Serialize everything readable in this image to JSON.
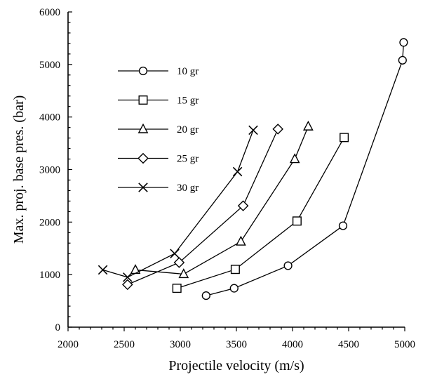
{
  "chart_data": {
    "type": "line",
    "xlabel": "Projectile velocity (m/s)",
    "ylabel": "Max. proj. base pres. (bar)",
    "xlim": [
      2000,
      5000
    ],
    "ylim": [
      0,
      6000
    ],
    "xticks": [
      2000,
      2500,
      3000,
      3500,
      4000,
      4500,
      5000
    ],
    "yticks": [
      0,
      1000,
      2000,
      3000,
      4000,
      5000,
      6000
    ],
    "grid": false,
    "legend_position": "upper-left",
    "series": [
      {
        "name": "10 gr",
        "marker": "circle",
        "x": [
          3230,
          3480,
          3960,
          4450,
          4980,
          4990
        ],
        "y": [
          600,
          740,
          1170,
          1930,
          5080,
          5420
        ]
      },
      {
        "name": "15 gr",
        "marker": "square",
        "x": [
          2970,
          3490,
          4040,
          4460
        ],
        "y": [
          740,
          1100,
          2020,
          3610
        ]
      },
      {
        "name": "20 gr",
        "marker": "triangle",
        "x": [
          2600,
          3030,
          3540,
          4020,
          4140
        ],
        "y": [
          1090,
          1010,
          1630,
          3200,
          3820
        ]
      },
      {
        "name": "25 gr",
        "marker": "diamond",
        "x": [
          2530,
          2990,
          3560,
          3870
        ],
        "y": [
          810,
          1230,
          2310,
          3770
        ]
      },
      {
        "name": "30 gr",
        "marker": "x",
        "x": [
          2310,
          2530,
          2950,
          3510,
          3650
        ],
        "y": [
          1090,
          950,
          1400,
          2960,
          3750
        ]
      }
    ]
  }
}
